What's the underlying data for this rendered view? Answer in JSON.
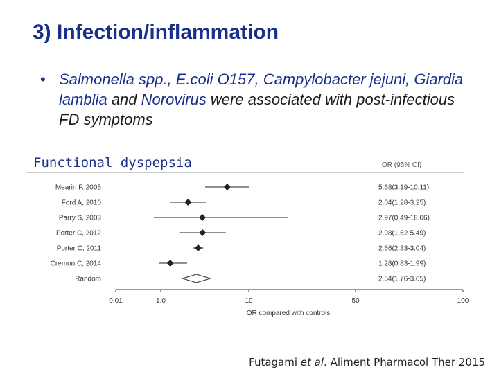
{
  "slide": {
    "title": "3) Infection/inflammation",
    "bullet": {
      "pathogens": "Salmonella spp., E.coli O157, Campylobacter jejuni, Giardia lamblia",
      "and_word": " and ",
      "norovirus": "Norovirus",
      "tail": " were associated with post-infectious FD symptoms"
    },
    "citation_prefix": "Futagami ",
    "citation_etal": "et al",
    "citation_suffix": ". Aliment Pharmacol Ther 2015"
  },
  "chart_data": {
    "type": "forest",
    "title": "Functional dyspepsia",
    "column_header": "OR (95% CI)",
    "xlabel": "OR compared with controls",
    "x_scale": "log",
    "xlim": [
      0.01,
      100
    ],
    "x_ticks": [
      {
        "value": 0.01,
        "label": "0.01"
      },
      {
        "value": 1.0,
        "label": "1.0"
      },
      {
        "value": 10,
        "label": "10"
      },
      {
        "value": 50,
        "label": "50"
      },
      {
        "value": 100,
        "label": "100"
      }
    ],
    "studies": [
      {
        "name": "Mearin F, 2005",
        "or": 5.68,
        "lo": 3.19,
        "hi": 10.11,
        "label": "5.68(3.19-10.11)"
      },
      {
        "name": "Ford A, 2010",
        "or": 2.04,
        "lo": 1.28,
        "hi": 3.25,
        "label": "2.04(1.28-3.25)"
      },
      {
        "name": "Parry S, 2003",
        "or": 2.97,
        "lo": 0.49,
        "hi": 18.06,
        "label": "2.97(0.49-18.06)"
      },
      {
        "name": "Porter C, 2012",
        "or": 2.98,
        "lo": 1.62,
        "hi": 5.49,
        "label": "2.98(1.62-5.49)"
      },
      {
        "name": "Porter C, 2011",
        "or": 2.66,
        "lo": 2.33,
        "hi": 3.04,
        "label": "2.66(2.33-3.04)"
      },
      {
        "name": "Cremon C, 2014",
        "or": 1.28,
        "lo": 0.83,
        "hi": 1.99,
        "label": "1.28(0.83-1.99)"
      }
    ],
    "pooled": {
      "name": "Random",
      "or": 2.54,
      "lo": 1.76,
      "hi": 3.65,
      "label": "2.54(1.76-3.65)"
    }
  }
}
